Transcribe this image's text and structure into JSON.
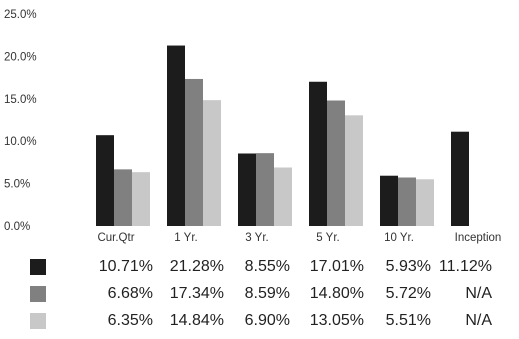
{
  "chart_data": {
    "type": "bar",
    "categories": [
      "Cur.Qtr",
      "1 Yr.",
      "3 Yr.",
      "5 Yr.",
      "10 Yr.",
      "Inception"
    ],
    "series": [
      {
        "color": "#1c1c1c",
        "values": [
          10.71,
          21.28,
          8.55,
          17.01,
          5.93,
          11.12
        ]
      },
      {
        "color": "#808080",
        "values": [
          6.68,
          17.34,
          8.59,
          14.8,
          5.72,
          null
        ]
      },
      {
        "color": "#c8c8c8",
        "values": [
          6.35,
          14.84,
          6.9,
          13.05,
          5.51,
          null
        ]
      }
    ],
    "yticks": [
      "0.0%",
      "5.0%",
      "10.0%",
      "15.0%",
      "20.0%",
      "25.0%"
    ],
    "ylim": [
      0,
      25
    ],
    "grid": false,
    "legend": "table-below",
    "table": [
      [
        "10.71%",
        "21.28%",
        "8.55%",
        "17.01%",
        "5.93%",
        "11.12%"
      ],
      [
        "6.68%",
        "17.34%",
        "8.59%",
        "14.80%",
        "5.72%",
        "N/A"
      ],
      [
        "6.35%",
        "14.84%",
        "6.90%",
        "13.05%",
        "5.51%",
        "N/A"
      ]
    ]
  }
}
